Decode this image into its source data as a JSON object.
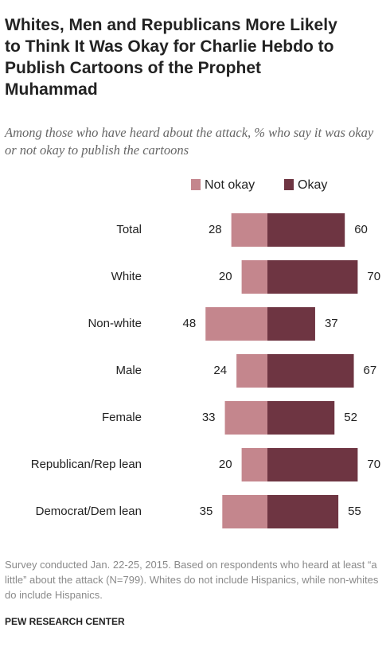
{
  "chart_data": {
    "type": "diverging_bar",
    "title": "Whites, Men and Republicans More Likely to Think It Was Okay for Charlie Hebdo to Publish Cartoons of the Prophet Muhammad",
    "subtitle": "Among those who have heard about the attack, % who say it was okay or not okay to publish the cartoons",
    "categories": [
      "Total",
      "White",
      "Non-white",
      "Male",
      "Female",
      "Republican/Rep lean",
      "Democrat/Dem lean"
    ],
    "series": [
      {
        "name": "Not okay",
        "color": "#c4868d",
        "values": [
          28,
          20,
          48,
          24,
          33,
          20,
          35
        ]
      },
      {
        "name": "Okay",
        "color": "#6e3542",
        "values": [
          60,
          70,
          37,
          67,
          52,
          70,
          55
        ]
      }
    ],
    "note": "Survey conducted Jan. 22-25, 2015. Based on respondents who heard at least “a little” about the attack (N=799). Whites do not include Hispanics, while non-whites do include Hispanics.",
    "source": "PEW RESEARCH CENTER"
  }
}
